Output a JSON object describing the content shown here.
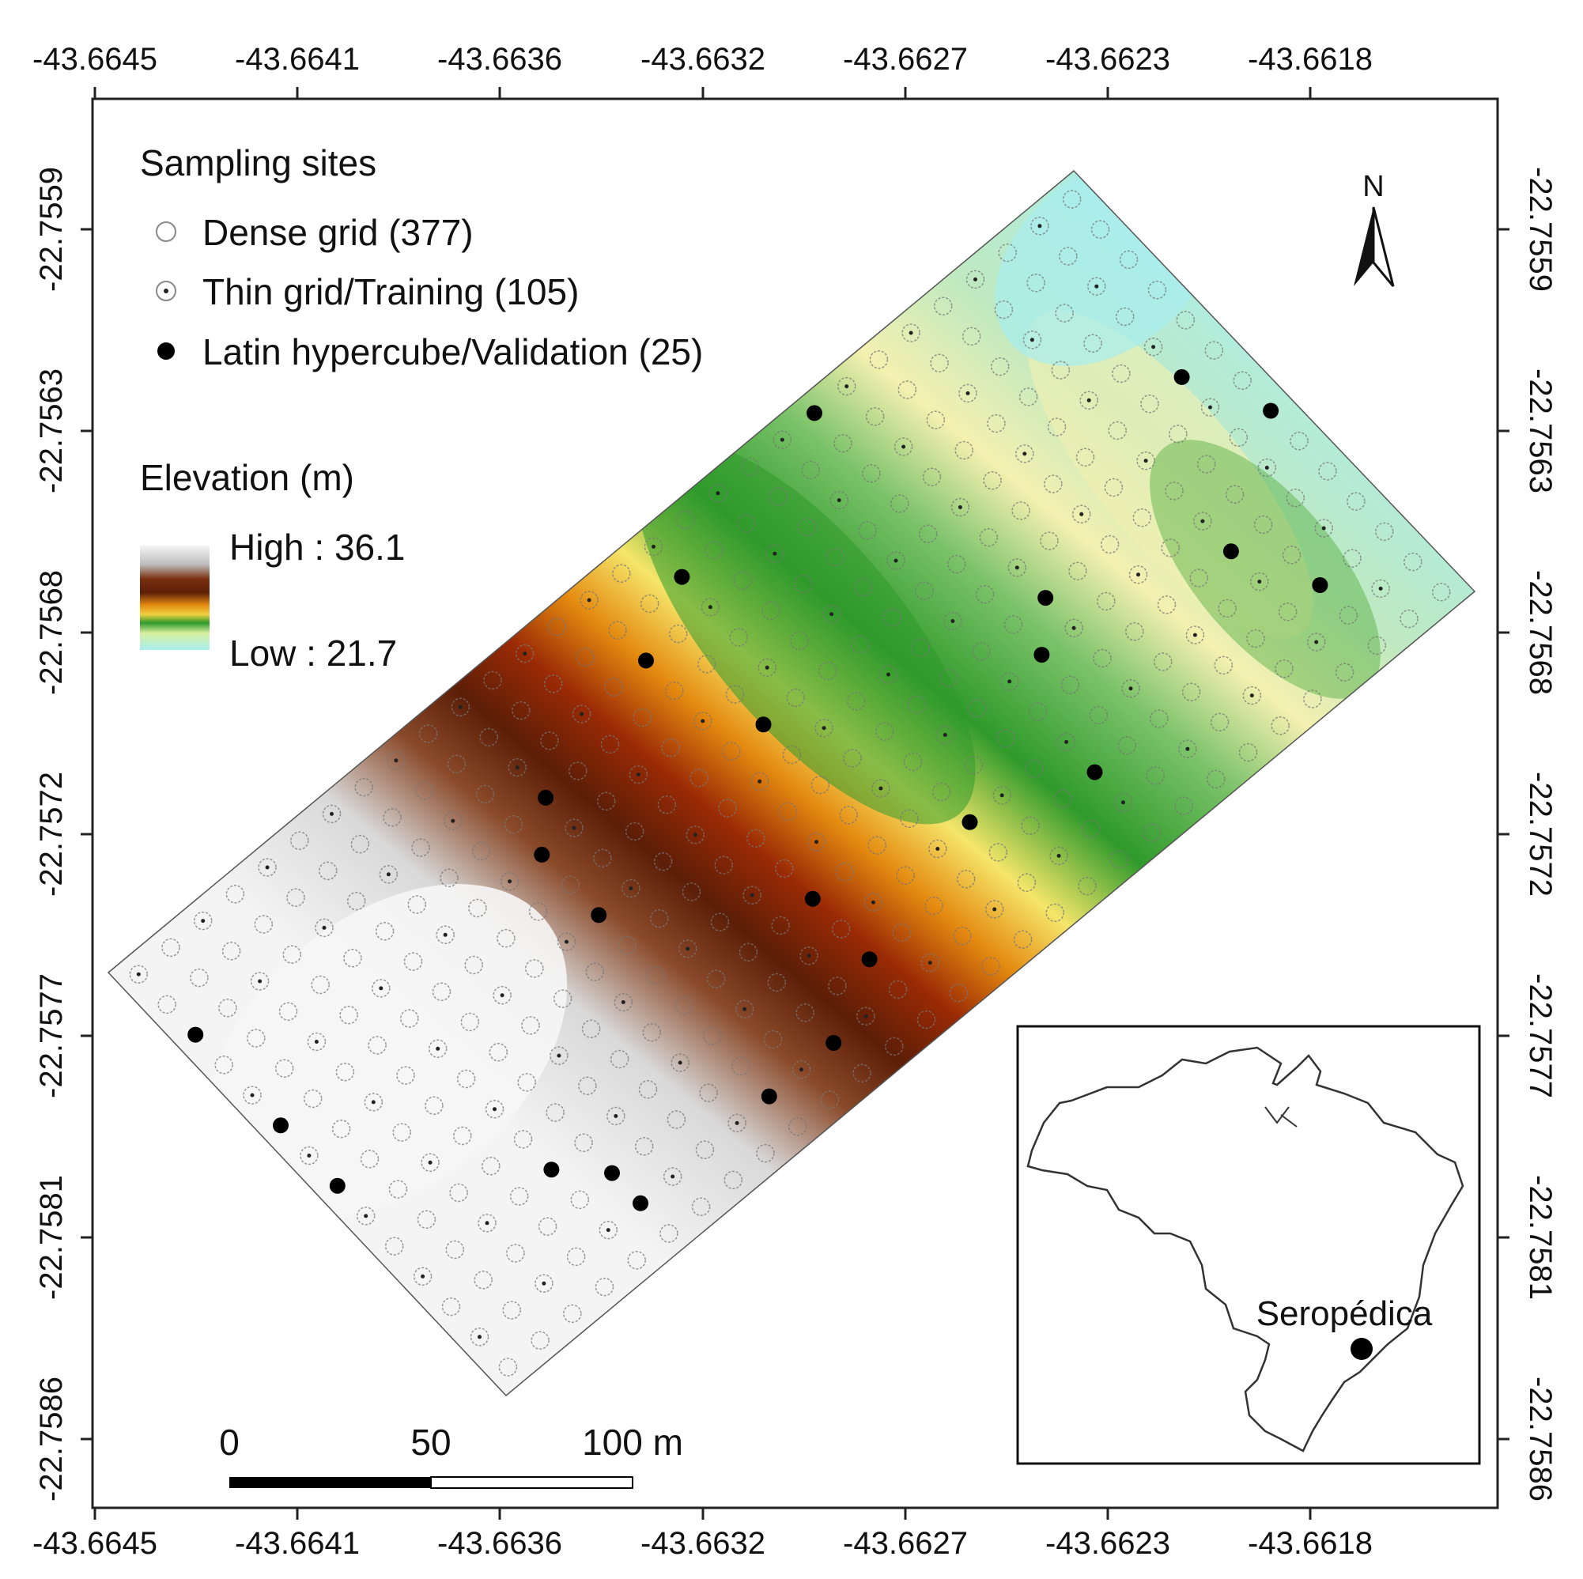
{
  "map": {
    "x_ticks": [
      "-43.6645",
      "-43.6641",
      "-43.6636",
      "-43.6632",
      "-43.6627",
      "-43.6623",
      "-43.6618"
    ],
    "y_ticks": [
      "-22.7559",
      "-22.7563",
      "-22.7568",
      "-22.7572",
      "-22.7577",
      "-22.7581",
      "-22.7586"
    ],
    "north_label": "N",
    "legend": {
      "sites_title": "Sampling sites",
      "dense": "Dense grid (377)",
      "thin": "Thin grid/Training (105)",
      "latin": "Latin hypercube/Validation (25)",
      "elev_title": "Elevation (m)",
      "high": "High : 36.1",
      "low": "Low : 21.7"
    },
    "scalebar": {
      "labels": [
        "0",
        "50",
        "100 m"
      ]
    },
    "inset": {
      "city": "Seropédica"
    },
    "colors": {
      "high": "#f4f4f4",
      "brown": "#5c1e07",
      "orange": "#e48a10",
      "yellow": "#f5e66a",
      "green": "#2f9a2b",
      "cyan": "#a8eef0"
    }
  }
}
